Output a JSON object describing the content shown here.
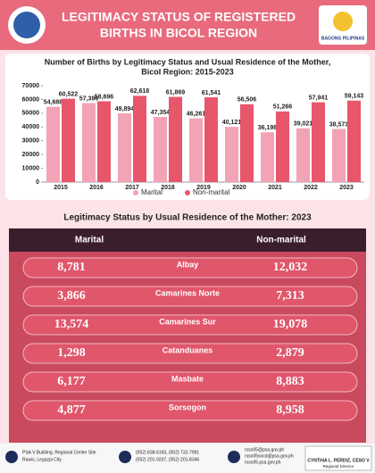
{
  "header": {
    "title": [
      "LEGITIMACY STATUS OF REGISTERED",
      "BIRTHS IN BICOL REGION"
    ],
    "logo_text": "BAGONG PILIPINAS"
  },
  "chart_data": {
    "type": "bar",
    "title": [
      "Number of Births by Legitimacy Status and Usual Residence of the Mother,",
      "Bicol Region: 2015-2023"
    ],
    "categories": [
      "2015",
      "2016",
      "2017",
      "2018",
      "2019",
      "2020",
      "2021",
      "2022",
      "2023"
    ],
    "series": [
      {
        "name": "Marital",
        "color": "#f2a3b5",
        "values": [
          54688,
          57396,
          49894,
          47354,
          46261,
          40121,
          36198,
          39021,
          38573
        ],
        "value_labels": [
          "54,688",
          "57,396",
          "49,894",
          "47,354",
          "46,261",
          "40,121",
          "36,198",
          "39,021",
          "38,573"
        ]
      },
      {
        "name": "Non-marital",
        "color": "#e8566c",
        "values": [
          60522,
          58696,
          62618,
          61869,
          61541,
          56506,
          51266,
          57941,
          59143
        ],
        "value_labels": [
          "60,522",
          "58,696",
          "62,618",
          "61,869",
          "61,541",
          "56,506",
          "51,266",
          "57,941",
          "59,143"
        ]
      }
    ],
    "ylim": [
      0,
      70000
    ],
    "yticks": [
      0,
      {
        "value": 10000,
        "label": "10000"
      },
      {
        "value": 20000,
        "label": "20000"
      },
      {
        "value": 30000,
        "label": "30000"
      },
      {
        "value": 40000,
        "label": "40000"
      },
      {
        "value": 50000,
        "label": "50000"
      },
      {
        "value": 60000,
        "label": "60000"
      },
      {
        "value": 70000,
        "label": "70000"
      }
    ],
    "grid": false,
    "legend": "bottom"
  },
  "table": {
    "title": "Legitimacy Status by Usual Residence of the Mother: 2023",
    "columns": [
      "Marital",
      "Non-marital"
    ],
    "rows": [
      [
        "8,781",
        "Albay",
        "12,032"
      ],
      [
        "3,866",
        "Camarines Norte",
        "7,313"
      ],
      [
        "13,574",
        "Camarines Sur",
        "19,078"
      ],
      [
        "1,298",
        "Catanduanes",
        "2,879"
      ],
      [
        "6,177",
        "Masbate",
        "8,883"
      ],
      [
        "4,877",
        "Sorsogon",
        "8,958"
      ]
    ]
  },
  "footer": {
    "address": [
      "PSA V Building, Regional Center Site",
      "Rawis, Legazpi City"
    ],
    "phones": [
      "(052) 838-6193, (052) 732-7991",
      "(052) 201-9237, (052) 201-8346"
    ],
    "emails": [
      "rsso05@psa.gov.ph",
      "rsso05socd@psa.gov.ph",
      "rsso05.psa.gov.ph"
    ],
    "signatory": "CYNTHIA L. PERDIZ, CESO V",
    "position": "Regional Director"
  }
}
